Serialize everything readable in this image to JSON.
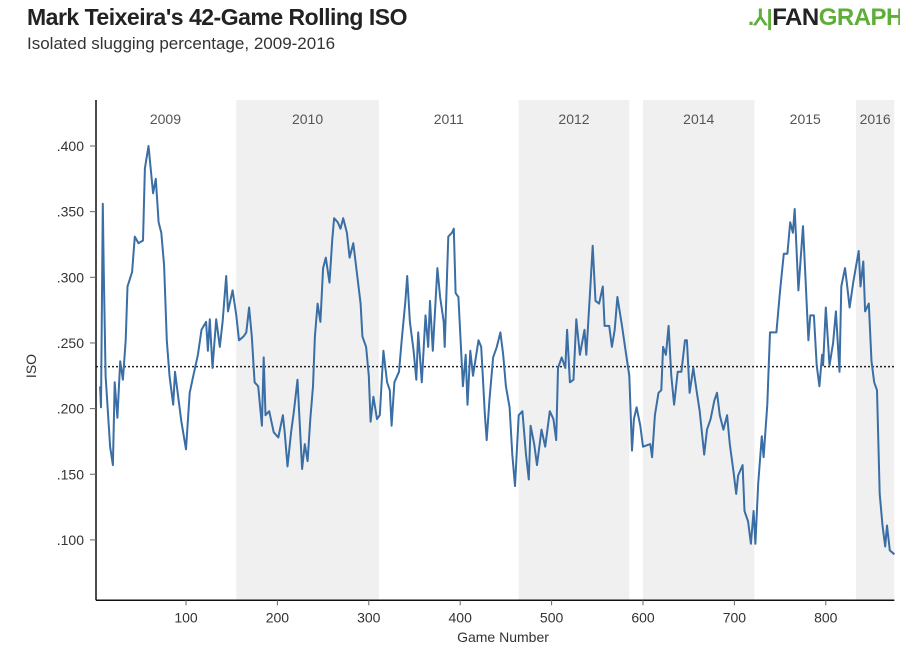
{
  "header": {
    "title": "Mark Teixeira's 42-Game Rolling ISO",
    "subtitle": "Isolated slugging percentage, 2009-2016",
    "logo_text": "FANGRAPHS",
    "logo_part1": "FAN",
    "logo_part2": "GRAPHS"
  },
  "chart_data": {
    "type": "line",
    "title": "Mark Teixeira's 42-Game Rolling ISO",
    "subtitle": "Isolated slugging percentage, 2009-2016",
    "xlabel": "Game Number",
    "ylabel": "ISO",
    "xlim": [
      0,
      875
    ],
    "ylim": [
      0.054,
      0.435
    ],
    "xticks": [
      100,
      200,
      300,
      400,
      500,
      600,
      700,
      800
    ],
    "xtick_labels": [
      "100",
      "200",
      "300",
      "400",
      "500",
      "600",
      "700",
      "800"
    ],
    "yticks": [
      0.1,
      0.15,
      0.2,
      0.25,
      0.3,
      0.35,
      0.4
    ],
    "ytick_labels": [
      ".100",
      ".150",
      ".200",
      ".250",
      ".300",
      ".350",
      ".400"
    ],
    "grid": false,
    "reference_line": {
      "value": 0.232,
      "style": "dotted"
    },
    "season_bands": [
      {
        "year": "2009",
        "start": 0,
        "end": 155,
        "shaded": false
      },
      {
        "year": "2010",
        "start": 155,
        "end": 311,
        "shaded": true
      },
      {
        "year": "2011",
        "start": 311,
        "end": 464,
        "shaded": false
      },
      {
        "year": "2012",
        "start": 464,
        "end": 585,
        "shaded": true
      },
      {
        "year": "2014",
        "start": 600,
        "end": 722,
        "shaded": true
      },
      {
        "year": "2015",
        "start": 722,
        "end": 833,
        "shaded": false
      },
      {
        "year": "2016",
        "start": 833,
        "end": 875,
        "shaded": true
      }
    ],
    "colors": {
      "line": "#3a6ea5",
      "band": "#f0f0f0",
      "axis": "#111111",
      "reference": "#222222"
    },
    "x": [
      6,
      7,
      9,
      10,
      12,
      17,
      20,
      22,
      25,
      28,
      31,
      34,
      36,
      41,
      44,
      48,
      53,
      55,
      59,
      64,
      67,
      70,
      73,
      76,
      79,
      82,
      86,
      88,
      92,
      95,
      100,
      104,
      108,
      113,
      117,
      122,
      124,
      126,
      129,
      133,
      137,
      140,
      144,
      146,
      151,
      155,
      158,
      163,
      166,
      169,
      172,
      175,
      179,
      183,
      185,
      187,
      191,
      196,
      201,
      206,
      208,
      211,
      215,
      218,
      222,
      224,
      227,
      230,
      233,
      236,
      239,
      241,
      244,
      247,
      250,
      253,
      257,
      260,
      262,
      266,
      269,
      272,
      276,
      279,
      283,
      286,
      291,
      293,
      297,
      300,
      302,
      305,
      309,
      312,
      316,
      320,
      323,
      325,
      328,
      333,
      336,
      340,
      342,
      345,
      349,
      352,
      354,
      358,
      362,
      365,
      367,
      370,
      375,
      378,
      382,
      383,
      387,
      391,
      393,
      395,
      398,
      402,
      403,
      406,
      408,
      411,
      414,
      420,
      423,
      427,
      429,
      432,
      436,
      440,
      444,
      447,
      450,
      454,
      457,
      460,
      464,
      468,
      472,
      475,
      477,
      481,
      484,
      489,
      493,
      498,
      502,
      505,
      507,
      511,
      515,
      517,
      520,
      524,
      527,
      531,
      536,
      538,
      542,
      545,
      548,
      552,
      556,
      558,
      563,
      566,
      569,
      572,
      577,
      581,
      585,
      588,
      590,
      593,
      597,
      600,
      608,
      610,
      613,
      617,
      620,
      622,
      625,
      628,
      631,
      634,
      638,
      642,
      646,
      648,
      651,
      655,
      659,
      662,
      667,
      670,
      674,
      678,
      681,
      684,
      688,
      692,
      695,
      699,
      702,
      704,
      709,
      711,
      715,
      718,
      721,
      723,
      726,
      730,
      732,
      736,
      739,
      746,
      750,
      754,
      758,
      761,
      764,
      766,
      770,
      775,
      778,
      781,
      783,
      787,
      790,
      793,
      796,
      797,
      800,
      804,
      808,
      811,
      815,
      817,
      821,
      823,
      826,
      830,
      836,
      838,
      841,
      843,
      847,
      850,
      853,
      856,
      859,
      862,
      865,
      867,
      870,
      875
    ],
    "y": [
      0.217,
      0.201,
      0.356,
      0.307,
      0.225,
      0.171,
      0.157,
      0.22,
      0.193,
      0.236,
      0.222,
      0.252,
      0.293,
      0.304,
      0.331,
      0.326,
      0.328,
      0.383,
      0.4,
      0.364,
      0.375,
      0.342,
      0.334,
      0.309,
      0.252,
      0.225,
      0.203,
      0.228,
      0.206,
      0.19,
      0.169,
      0.212,
      0.225,
      0.241,
      0.26,
      0.266,
      0.244,
      0.268,
      0.231,
      0.268,
      0.247,
      0.266,
      0.301,
      0.274,
      0.29,
      0.271,
      0.252,
      0.255,
      0.258,
      0.277,
      0.255,
      0.22,
      0.217,
      0.187,
      0.239,
      0.195,
      0.198,
      0.182,
      0.178,
      0.195,
      0.182,
      0.156,
      0.182,
      0.198,
      0.222,
      0.195,
      0.154,
      0.173,
      0.16,
      0.192,
      0.217,
      0.255,
      0.28,
      0.266,
      0.307,
      0.315,
      0.296,
      0.328,
      0.345,
      0.342,
      0.337,
      0.345,
      0.334,
      0.315,
      0.326,
      0.309,
      0.28,
      0.255,
      0.247,
      0.225,
      0.19,
      0.209,
      0.192,
      0.195,
      0.244,
      0.22,
      0.214,
      0.187,
      0.22,
      0.228,
      0.252,
      0.282,
      0.301,
      0.266,
      0.244,
      0.222,
      0.258,
      0.22,
      0.271,
      0.247,
      0.282,
      0.244,
      0.307,
      0.285,
      0.266,
      0.247,
      0.331,
      0.334,
      0.337,
      0.288,
      0.285,
      0.231,
      0.217,
      0.241,
      0.203,
      0.244,
      0.225,
      0.252,
      0.247,
      0.195,
      0.176,
      0.206,
      0.239,
      0.247,
      0.258,
      0.241,
      0.217,
      0.201,
      0.165,
      0.141,
      0.195,
      0.198,
      0.165,
      0.146,
      0.187,
      0.173,
      0.157,
      0.184,
      0.171,
      0.198,
      0.192,
      0.176,
      0.231,
      0.239,
      0.231,
      0.26,
      0.22,
      0.222,
      0.268,
      0.241,
      0.26,
      0.241,
      0.288,
      0.324,
      0.282,
      0.28,
      0.293,
      0.263,
      0.263,
      0.247,
      0.26,
      0.285,
      0.263,
      0.244,
      0.225,
      0.168,
      0.192,
      0.201,
      0.187,
      0.171,
      0.173,
      0.163,
      0.195,
      0.212,
      0.214,
      0.247,
      0.241,
      0.263,
      0.225,
      0.203,
      0.228,
      0.228,
      0.252,
      0.252,
      0.212,
      0.231,
      0.212,
      0.198,
      0.165,
      0.184,
      0.192,
      0.206,
      0.212,
      0.195,
      0.184,
      0.195,
      0.173,
      0.152,
      0.135,
      0.149,
      0.157,
      0.122,
      0.114,
      0.097,
      0.122,
      0.097,
      0.143,
      0.179,
      0.163,
      0.203,
      0.258,
      0.258,
      0.29,
      0.318,
      0.318,
      0.342,
      0.334,
      0.352,
      0.29,
      0.339,
      0.296,
      0.252,
      0.271,
      0.271,
      0.233,
      0.217,
      0.241,
      0.233,
      0.277,
      0.233,
      0.25,
      0.274,
      0.228,
      0.293,
      0.307,
      0.296,
      0.277,
      0.296,
      0.32,
      0.293,
      0.312,
      0.274,
      0.28,
      0.236,
      0.22,
      0.214,
      0.135,
      0.111,
      0.095,
      0.111,
      0.092,
      0.089
    ]
  }
}
